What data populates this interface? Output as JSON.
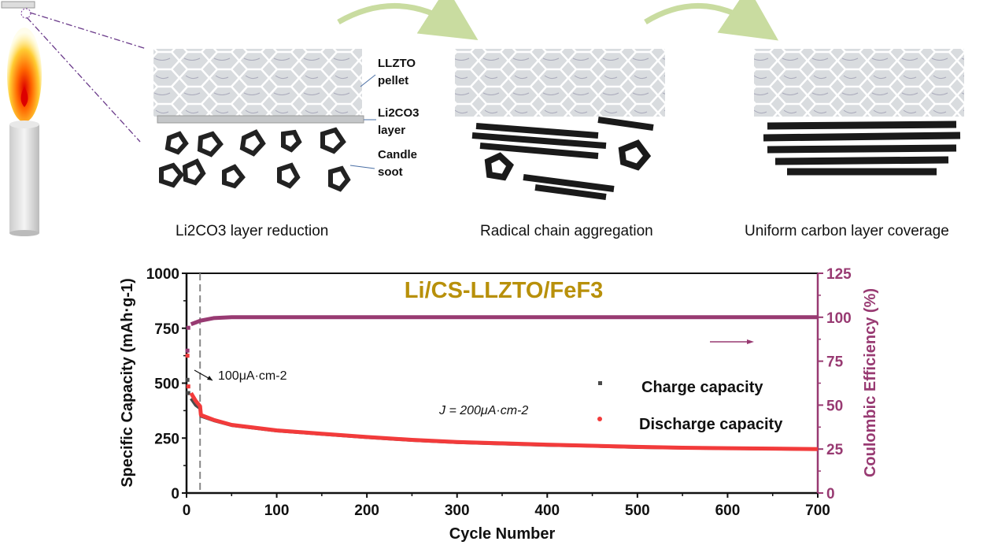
{
  "schematic": {
    "labels": {
      "pellet_line1": "LLZTO",
      "pellet_line2": "pellet",
      "layer_line1": "Li2CO3",
      "layer_line2": "layer",
      "soot_line1": "Candle",
      "soot_line2": "soot"
    },
    "captions": [
      "Li2CO3 layer reduction",
      "Radical chain aggregation",
      "Uniform carbon layer coverage"
    ]
  },
  "chart_data": {
    "type": "scatter",
    "title": "Li/CS-LLZTO/FeF3",
    "xlabel": "Cycle Number",
    "ylabel": "Specific Capacity (mAh·g-1)",
    "y2label": "Coulombic Efficiency (%)",
    "xlim": [
      0,
      700
    ],
    "ylim": [
      0,
      1000
    ],
    "y2lim": [
      0,
      125
    ],
    "xticks": [
      0,
      100,
      200,
      300,
      400,
      500,
      600,
      700
    ],
    "yticks": [
      0,
      250,
      500,
      750,
      1000
    ],
    "y2ticks": [
      0,
      25,
      50,
      75,
      100,
      125
    ],
    "grid": false,
    "legend_placement": "right-center",
    "annotations": {
      "low_current": "100μA·cm-2",
      "high_current": "J = 200μA·cm-2",
      "rate_switch_cycle": 15
    },
    "colors": {
      "title": "#b8900a",
      "charge": "#4a4a4a",
      "discharge": "#f23b3b",
      "ce": "#983a72"
    },
    "series": [
      {
        "name": "Charge capacity",
        "axis": "left",
        "points": [
          [
            1,
            515
          ],
          [
            2,
            455
          ],
          [
            5,
            430
          ],
          [
            10,
            400
          ],
          [
            15,
            385
          ],
          [
            16,
            350
          ],
          [
            30,
            330
          ],
          [
            50,
            308
          ],
          [
            100,
            283
          ],
          [
            150,
            268
          ],
          [
            200,
            253
          ],
          [
            250,
            240
          ],
          [
            300,
            230
          ],
          [
            350,
            224
          ],
          [
            400,
            218
          ],
          [
            450,
            214
          ],
          [
            500,
            208
          ],
          [
            550,
            205
          ],
          [
            600,
            203
          ],
          [
            650,
            201
          ],
          [
            700,
            199
          ]
        ]
      },
      {
        "name": "Discharge capacity",
        "axis": "left",
        "points": [
          [
            1,
            625
          ],
          [
            2,
            485
          ],
          [
            5,
            455
          ],
          [
            10,
            420
          ],
          [
            15,
            395
          ],
          [
            16,
            355
          ],
          [
            30,
            333
          ],
          [
            50,
            310
          ],
          [
            100,
            285
          ],
          [
            150,
            270
          ],
          [
            200,
            255
          ],
          [
            250,
            242
          ],
          [
            300,
            232
          ],
          [
            350,
            226
          ],
          [
            400,
            220
          ],
          [
            450,
            215
          ],
          [
            500,
            210
          ],
          [
            550,
            206
          ],
          [
            600,
            204
          ],
          [
            650,
            202
          ],
          [
            700,
            200
          ]
        ]
      },
      {
        "name": "Coulombic Efficiency",
        "axis": "right",
        "points": [
          [
            1,
            81
          ],
          [
            2,
            94
          ],
          [
            5,
            96
          ],
          [
            10,
            97
          ],
          [
            15,
            98
          ],
          [
            30,
            99.5
          ],
          [
            50,
            100
          ],
          [
            100,
            100
          ],
          [
            200,
            100
          ],
          [
            300,
            100
          ],
          [
            400,
            100
          ],
          [
            500,
            100
          ],
          [
            600,
            100
          ],
          [
            700,
            100
          ]
        ]
      }
    ]
  }
}
